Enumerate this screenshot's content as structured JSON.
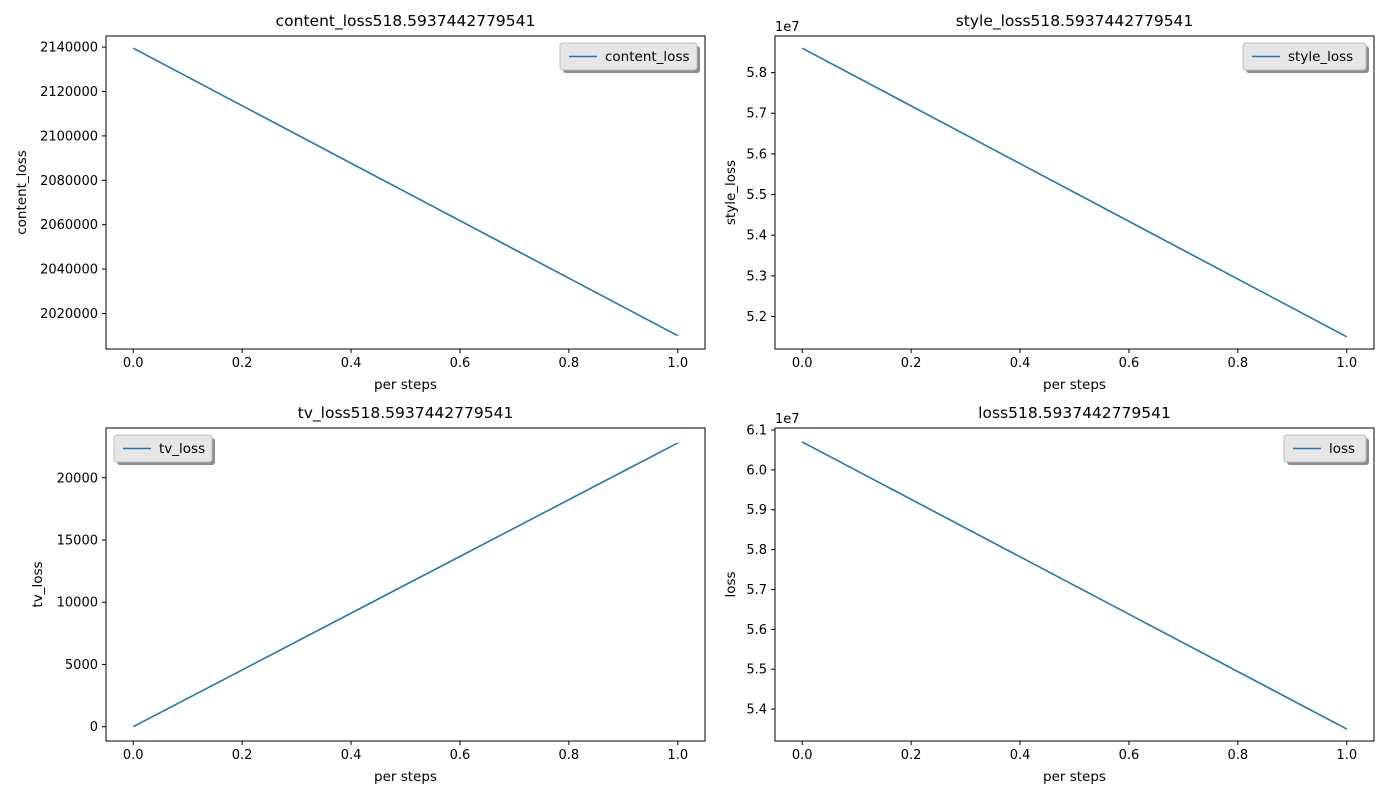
{
  "chart_data": [
    {
      "type": "line",
      "title": "content_loss518.5937442779541",
      "xlabel": "per steps",
      "ylabel": "content_loss",
      "offset_text": "",
      "xlim": [
        -0.05,
        1.05
      ],
      "ylim": [
        2004000,
        2145000
      ],
      "xticks": [
        0.0,
        0.2,
        0.4,
        0.6,
        0.8,
        1.0
      ],
      "xtick_labels": [
        "0.0",
        "0.2",
        "0.4",
        "0.6",
        "0.8",
        "1.0"
      ],
      "yticks": [
        2020000,
        2040000,
        2060000,
        2080000,
        2100000,
        2120000,
        2140000
      ],
      "ytick_labels": [
        "2020000",
        "2040000",
        "2060000",
        "2080000",
        "2100000",
        "2120000",
        "2140000"
      ],
      "legend": "upper right",
      "series": [
        {
          "name": "content_loss",
          "x": [
            0,
            1
          ],
          "y": [
            2139500,
            2010000
          ],
          "color": "#1f77b4"
        }
      ]
    },
    {
      "type": "line",
      "title": "style_loss518.5937442779541",
      "xlabel": "per steps",
      "ylabel": "style_loss",
      "offset_text": "1e7",
      "xlim": [
        -0.05,
        1.05
      ],
      "ylim": [
        5.12,
        5.89
      ],
      "xticks": [
        0.0,
        0.2,
        0.4,
        0.6,
        0.8,
        1.0
      ],
      "xtick_labels": [
        "0.0",
        "0.2",
        "0.4",
        "0.6",
        "0.8",
        "1.0"
      ],
      "yticks": [
        5.2,
        5.3,
        5.4,
        5.5,
        5.6,
        5.7,
        5.8
      ],
      "ytick_labels": [
        "5.2",
        "5.3",
        "5.4",
        "5.5",
        "5.6",
        "5.7",
        "5.8"
      ],
      "legend": "upper right",
      "series": [
        {
          "name": "style_loss",
          "x": [
            0,
            1
          ],
          "y": [
            5.86,
            5.15
          ],
          "color": "#1f77b4"
        }
      ]
    },
    {
      "type": "line",
      "title": "tv_loss518.5937442779541",
      "xlabel": "per steps",
      "ylabel": "tv_loss",
      "offset_text": "",
      "xlim": [
        -0.05,
        1.05
      ],
      "ylim": [
        -1150,
        24000
      ],
      "xticks": [
        0.0,
        0.2,
        0.4,
        0.6,
        0.8,
        1.0
      ],
      "xtick_labels": [
        "0.0",
        "0.2",
        "0.4",
        "0.6",
        "0.8",
        "1.0"
      ],
      "yticks": [
        0,
        5000,
        10000,
        15000,
        20000
      ],
      "ytick_labels": [
        "0",
        "5000",
        "10000",
        "15000",
        "20000"
      ],
      "legend": "upper left",
      "series": [
        {
          "name": "tv_loss",
          "x": [
            0,
            1
          ],
          "y": [
            0,
            22800
          ],
          "color": "#1f77b4"
        }
      ]
    },
    {
      "type": "line",
      "title": "loss518.5937442779541",
      "xlabel": "per steps",
      "ylabel": "loss",
      "offset_text": "1e7",
      "xlim": [
        -0.05,
        1.05
      ],
      "ylim": [
        5.32,
        6.105
      ],
      "xticks": [
        0.0,
        0.2,
        0.4,
        0.6,
        0.8,
        1.0
      ],
      "xtick_labels": [
        "0.0",
        "0.2",
        "0.4",
        "0.6",
        "0.8",
        "1.0"
      ],
      "yticks": [
        5.4,
        5.5,
        5.6,
        5.7,
        5.8,
        5.9,
        6.0,
        6.1
      ],
      "ytick_labels": [
        "5.4",
        "5.5",
        "5.6",
        "5.7",
        "5.8",
        "5.9",
        "6.0",
        "6.1"
      ],
      "legend": "upper right",
      "series": [
        {
          "name": "loss",
          "x": [
            0,
            1
          ],
          "y": [
            6.07,
            5.35
          ],
          "color": "#1f77b4"
        }
      ]
    }
  ]
}
